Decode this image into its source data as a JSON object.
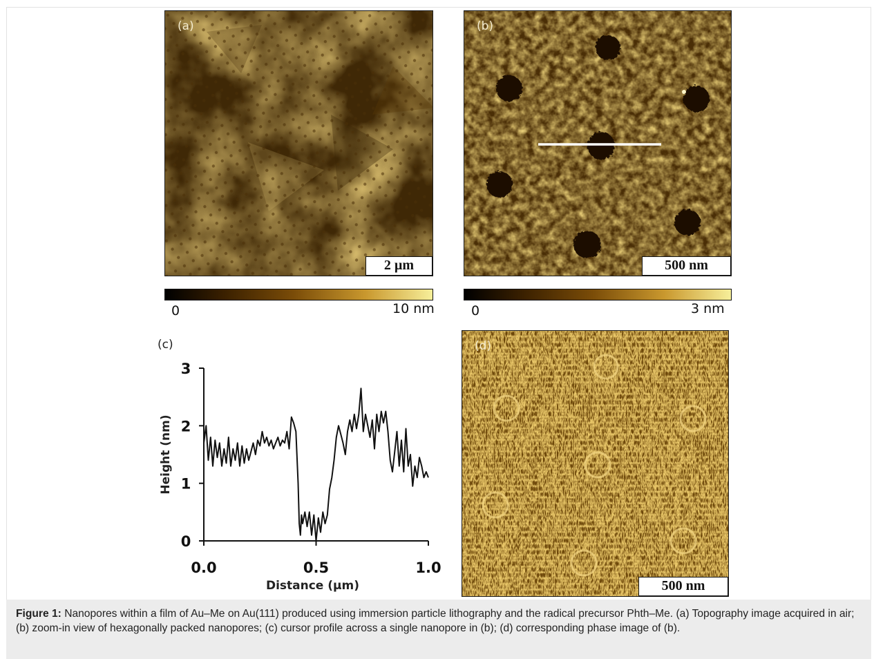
{
  "figure": {
    "panels": {
      "a": {
        "label": "(a)",
        "scalebar": "2 µm",
        "colorbar_min": "0",
        "colorbar_max": "10 nm"
      },
      "b": {
        "label": "(b)",
        "scalebar": "500 nm",
        "colorbar_min": "0",
        "colorbar_max": "3 nm"
      },
      "c": {
        "label": "(c)"
      },
      "d": {
        "label": "(d)",
        "scalebar": "500 nm"
      }
    },
    "caption": {
      "lead": "Figure 1:",
      "text": " Nanopores within a film of Au–Me on Au(111) produced using immersion particle lithography and the radical precursor Phth–Me. (a) Topography image acquired in air; (b) zoom-in view of hexagonally packed nanopores; (c) cursor profile across a single nanopore in (b); (d) corresponding phase image of (b)."
    },
    "colors": {
      "afm_light": "#d9a53a",
      "afm_dark": "#3a2405",
      "caption_bg": "#ececec"
    }
  },
  "chart_data": {
    "type": "line",
    "title": "",
    "xlabel": "Distance (µm)",
    "ylabel": "Height (nm)",
    "xlim": [
      0,
      1
    ],
    "ylim": [
      0,
      3
    ],
    "xticks": [
      "0.0",
      "0.5",
      "1.0"
    ],
    "yticks": [
      "0",
      "1",
      "2",
      "3"
    ],
    "grid": false,
    "series": [
      {
        "x": [
          0.0,
          0.01,
          0.02,
          0.03,
          0.04,
          0.05,
          0.06,
          0.07,
          0.08,
          0.09,
          0.1,
          0.11,
          0.12,
          0.13,
          0.14,
          0.15,
          0.16,
          0.17,
          0.18,
          0.19,
          0.2,
          0.21,
          0.22,
          0.23,
          0.24,
          0.25,
          0.26,
          0.27,
          0.28,
          0.29,
          0.3,
          0.31,
          0.32,
          0.33,
          0.34,
          0.35,
          0.36,
          0.37,
          0.38,
          0.39,
          0.4,
          0.41,
          0.42,
          0.425,
          0.43,
          0.435,
          0.44,
          0.45,
          0.46,
          0.47,
          0.48,
          0.49,
          0.5,
          0.51,
          0.52,
          0.53,
          0.54,
          0.55,
          0.56,
          0.57,
          0.58,
          0.59,
          0.6,
          0.61,
          0.62,
          0.63,
          0.64,
          0.65,
          0.66,
          0.67,
          0.68,
          0.69,
          0.7,
          0.71,
          0.72,
          0.73,
          0.74,
          0.75,
          0.76,
          0.77,
          0.78,
          0.79,
          0.8,
          0.81,
          0.82,
          0.83,
          0.84,
          0.85,
          0.86,
          0.87,
          0.88,
          0.89,
          0.9,
          0.91,
          0.92,
          0.93,
          0.94,
          0.95,
          0.96,
          0.97,
          0.98,
          0.99,
          1.0
        ],
        "y": [
          1.7,
          2.0,
          1.4,
          1.8,
          1.3,
          1.75,
          1.45,
          1.7,
          1.3,
          1.6,
          1.35,
          1.8,
          1.3,
          1.6,
          1.4,
          1.7,
          1.3,
          1.65,
          1.35,
          1.6,
          1.4,
          1.55,
          1.7,
          1.5,
          1.75,
          1.65,
          1.9,
          1.7,
          1.8,
          1.65,
          1.75,
          1.6,
          1.7,
          1.8,
          1.65,
          1.75,
          1.7,
          1.9,
          1.6,
          2.15,
          2.05,
          1.9,
          1.0,
          0.3,
          0.1,
          0.45,
          0.3,
          0.5,
          0.25,
          0.5,
          0.1,
          0.45,
          0.0,
          0.4,
          0.15,
          0.5,
          0.3,
          0.45,
          0.9,
          1.1,
          1.4,
          1.8,
          2.0,
          1.85,
          1.7,
          1.5,
          1.9,
          2.1,
          1.9,
          2.2,
          1.95,
          2.2,
          2.65,
          1.9,
          2.2,
          2.0,
          1.8,
          2.1,
          1.6,
          2.2,
          1.9,
          2.25,
          2.05,
          2.25,
          1.9,
          1.4,
          1.2,
          1.55,
          1.9,
          1.3,
          1.75,
          1.2,
          1.95,
          1.3,
          1.5,
          0.95,
          1.3,
          1.1,
          1.45,
          1.3,
          1.1,
          1.2,
          1.1
        ]
      }
    ]
  }
}
